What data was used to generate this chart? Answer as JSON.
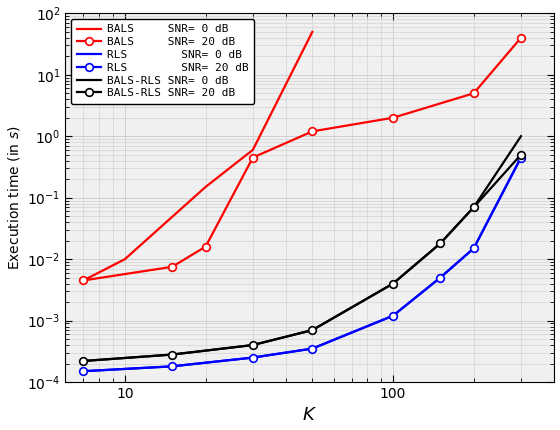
{
  "title": "",
  "xlabel": "$K$",
  "ylabel": "Execution time (in $s$)",
  "xlim": [
    6,
    400
  ],
  "ylim": [
    0.0001,
    100.0
  ],
  "grid_color": "#cccccc",
  "bg_color": "#f0f0f0",
  "BALS_0dB": {
    "K": [
      7,
      10,
      20,
      30,
      50
    ],
    "t": [
      0.0045,
      0.01,
      0.15,
      0.6,
      50.0
    ],
    "color": "#ff0000",
    "linestyle": "-",
    "marker": null,
    "label": "BALS     SNR= 0 dB",
    "linewidth": 1.6
  },
  "BALS_20dB": {
    "K": [
      7,
      15,
      20,
      30,
      50,
      100,
      200,
      300
    ],
    "t": [
      0.0045,
      0.0075,
      0.016,
      0.45,
      1.2,
      2.0,
      5.0,
      40.0
    ],
    "color": "#ff0000",
    "linestyle": "-",
    "marker": "o",
    "label": "BALS     SNR= 20 dB",
    "linewidth": 1.6
  },
  "RLS_0dB": {
    "K": [
      7,
      15,
      30,
      50,
      100,
      150,
      200,
      300
    ],
    "t": [
      0.00015,
      0.00018,
      0.00025,
      0.00035,
      0.0012,
      0.005,
      0.015,
      0.45
    ],
    "color": "#0000ff",
    "linestyle": "-",
    "marker": null,
    "label": "RLS        SNR= 0 dB",
    "linewidth": 1.6
  },
  "RLS_20dB": {
    "K": [
      7,
      15,
      30,
      50,
      100,
      150,
      200,
      300
    ],
    "t": [
      0.00015,
      0.00018,
      0.00025,
      0.00035,
      0.0012,
      0.005,
      0.015,
      0.45
    ],
    "color": "#0000ff",
    "linestyle": "-",
    "marker": "o",
    "label": "RLS        SNR= 20 dB",
    "linewidth": 1.6
  },
  "BALS_RLS_0dB": {
    "K": [
      7,
      15,
      30,
      50,
      100,
      150,
      200,
      300
    ],
    "t": [
      0.00022,
      0.00028,
      0.0004,
      0.0007,
      0.004,
      0.018,
      0.07,
      1.0
    ],
    "color": "#000000",
    "linestyle": "-",
    "marker": null,
    "label": "BALS-RLS SNR= 0 dB",
    "linewidth": 1.6
  },
  "BALS_RLS_20dB": {
    "K": [
      7,
      15,
      30,
      50,
      100,
      150,
      200,
      300
    ],
    "t": [
      0.00022,
      0.00028,
      0.0004,
      0.0007,
      0.004,
      0.018,
      0.07,
      0.5
    ],
    "color": "#000000",
    "linestyle": "-",
    "marker": "o",
    "label": "BALS-RLS SNR= 20 dB",
    "linewidth": 1.6
  }
}
